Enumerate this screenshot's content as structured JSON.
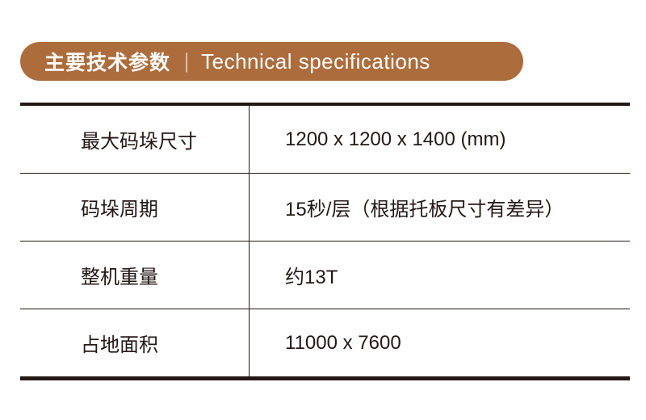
{
  "header": {
    "title_cn": "主要技术参数",
    "separator": "|",
    "title_en": "Technical specifications",
    "color": "#ad6c3c"
  },
  "specs": [
    {
      "label": "最大码垛尺寸",
      "value": "1200 x 1200 x 1400 (mm)"
    },
    {
      "label": "码垛周期",
      "value": "15秒/层（根据托板尺寸有差异）"
    },
    {
      "label": "整机重量",
      "value": "约13T"
    },
    {
      "label": "占地面积",
      "value": "11000 x 7600"
    }
  ]
}
